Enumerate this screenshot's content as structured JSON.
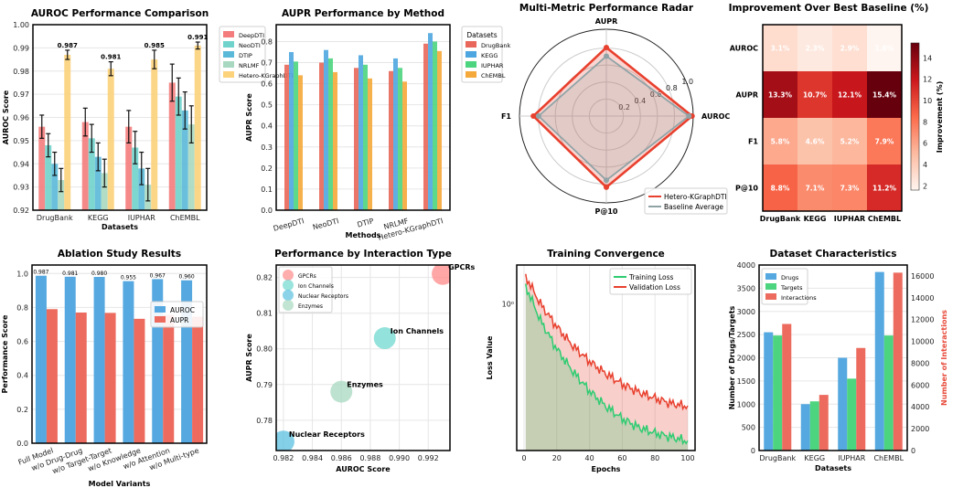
{
  "chart_data": [
    {
      "type": "bar",
      "title": "AUROC Performance Comparison",
      "xlabel": "Datasets",
      "ylabel": "AUROC Score",
      "ylim": [
        0.92,
        1.0
      ],
      "yticks": [
        "0.92",
        "0.93",
        "0.94",
        "0.95",
        "0.96",
        "0.97",
        "0.98",
        "0.99",
        "1.00"
      ],
      "categories": [
        "DrugBank",
        "KEGG",
        "IUPHAR",
        "ChEMBL"
      ],
      "series": [
        {
          "name": "DeepDTI",
          "color": "#f47c7c",
          "values": [
            0.956,
            0.958,
            0.956,
            0.975
          ],
          "err": [
            0.005,
            0.006,
            0.007,
            0.008
          ]
        },
        {
          "name": "NeoDTI",
          "color": "#6fd3cb",
          "values": [
            0.948,
            0.951,
            0.947,
            0.969
          ],
          "err": [
            0.005,
            0.006,
            0.007,
            0.008
          ]
        },
        {
          "name": "DTIP",
          "color": "#5ab8d8",
          "values": [
            0.94,
            0.943,
            0.938,
            0.963
          ],
          "err": [
            0.005,
            0.006,
            0.007,
            0.008
          ]
        },
        {
          "name": "NRLMF",
          "color": "#a8d8c0",
          "values": [
            0.933,
            0.936,
            0.931,
            0.957
          ],
          "err": [
            0.005,
            0.006,
            0.007,
            0.008
          ]
        },
        {
          "name": "Hetero-KGraphDTI",
          "color": "#fcd27a",
          "values": [
            0.987,
            0.981,
            0.985,
            0.991
          ],
          "err": [
            0.002,
            0.003,
            0.004,
            0.0015
          ]
        }
      ],
      "data_labels": [
        "0.987",
        "0.981",
        "0.985",
        "0.991"
      ],
      "legend": "right-outside"
    },
    {
      "type": "bar",
      "title": "AUPR Performance by Method",
      "xlabel": "Methods",
      "ylabel": "AUPR Score",
      "ylim": [
        0,
        0.88
      ],
      "yticks": [
        "0.0",
        "0.1",
        "0.2",
        "0.3",
        "0.4",
        "0.5",
        "0.6",
        "0.7",
        "0.8"
      ],
      "categories": [
        "DeepDTI",
        "NeoDTI",
        "DTIP",
        "NRLMF",
        "Hetero-KGraphDTI"
      ],
      "legend_title": "Datasets",
      "series": [
        {
          "name": "DrugBank",
          "color": "#e8675a",
          "values": [
            0.69,
            0.7,
            0.675,
            0.66,
            0.79
          ]
        },
        {
          "name": "KEGG",
          "color": "#4ea6e0",
          "values": [
            0.75,
            0.76,
            0.735,
            0.72,
            0.84
          ]
        },
        {
          "name": "IUPHAR",
          "color": "#4cd47e",
          "values": [
            0.705,
            0.72,
            0.69,
            0.675,
            0.8
          ]
        },
        {
          "name": "ChEMBL",
          "color": "#f5a93a",
          "values": [
            0.64,
            0.655,
            0.625,
            0.61,
            0.755
          ]
        }
      ]
    },
    {
      "type": "radar",
      "title": "Multi-Metric Performance Radar",
      "axes": [
        "AUROC",
        "AUPR",
        "F1",
        "P@10"
      ],
      "rticks": [
        "0.2",
        "0.4",
        "0.6",
        "0.8",
        "1.0"
      ],
      "series": [
        {
          "name": "Hetero-KGraphDTI",
          "color": "#e8402e",
          "values": [
            0.987,
            0.79,
            0.84,
            0.82
          ]
        },
        {
          "name": "Baseline Average",
          "color": "#8fa3a6",
          "values": [
            0.95,
            0.69,
            0.78,
            0.74
          ]
        }
      ]
    },
    {
      "type": "heatmap",
      "title": "Improvement Over Best Baseline (%)",
      "rows": [
        "AUROC",
        "AUPR",
        "F1",
        "P@10"
      ],
      "cols": [
        "DrugBank",
        "KEGG",
        "IUPHAR",
        "ChEMBL"
      ],
      "values": [
        [
          3.1,
          2.3,
          2.9,
          1.6
        ],
        [
          13.3,
          10.7,
          12.1,
          15.4
        ],
        [
          5.8,
          4.6,
          5.2,
          7.9
        ],
        [
          8.8,
          7.1,
          7.3,
          11.2
        ]
      ],
      "colorbar_label": "Improvement (%)",
      "colorbar_ticks": [
        "2",
        "4",
        "6",
        "8",
        "10",
        "12",
        "14"
      ],
      "vrange": [
        1.6,
        15.4
      ]
    },
    {
      "type": "bar",
      "title": "Ablation Study Results",
      "xlabel": "Model Variants",
      "ylabel": "Performance Score",
      "ylim": [
        0,
        1.05
      ],
      "yticks": [
        "0.0",
        "0.2",
        "0.4",
        "0.6",
        "0.8",
        "1.0"
      ],
      "categories": [
        "Full Model",
        "w/o Drug-Drug",
        "w/o Target-Target",
        "w/o Knowledge",
        "w/o Attention",
        "w/o Multi-type"
      ],
      "series": [
        {
          "name": "AUROC",
          "color": "#55a8e0",
          "values": [
            0.987,
            0.981,
            0.98,
            0.955,
            0.967,
            0.96
          ]
        },
        {
          "name": "AUPR",
          "color": "#ec6b5e",
          "values": [
            0.79,
            0.77,
            0.768,
            0.733,
            0.756,
            0.745
          ]
        }
      ],
      "data_labels": [
        "0.987",
        "0.981",
        "0.980",
        "0.955",
        "0.967",
        "0.960"
      ],
      "legend": "top-right"
    },
    {
      "type": "scatter",
      "title": "Performance by Interaction Type",
      "xlabel": "AUROC Score",
      "ylabel": "AUPR Score",
      "xlim": [
        0.9815,
        0.9935
      ],
      "ylim": [
        0.7715,
        0.8235
      ],
      "xticks": [
        "0.982",
        "0.984",
        "0.986",
        "0.988",
        "0.990",
        "0.992"
      ],
      "yticks": [
        "0.78",
        "0.79",
        "0.80",
        "0.81",
        "0.82"
      ],
      "points": [
        {
          "name": "GPCRs",
          "x": 0.993,
          "y": 0.821,
          "color": "#ff8a8a"
        },
        {
          "name": "Ion Channels",
          "x": 0.989,
          "y": 0.803,
          "color": "#6fd8d0"
        },
        {
          "name": "Nuclear Receptors",
          "x": 0.982,
          "y": 0.774,
          "color": "#5bc0e0"
        },
        {
          "name": "Enzymes",
          "x": 0.986,
          "y": 0.788,
          "color": "#a8d8c0"
        }
      ],
      "legend": "top-left"
    },
    {
      "type": "line",
      "title": "Training Convergence",
      "xlabel": "Epochs",
      "ylabel": "Loss Value",
      "yscale": "log",
      "xticks": [
        "0",
        "20",
        "40",
        "60",
        "80",
        "100"
      ],
      "ytick_label": "10⁰",
      "x": [
        0,
        10,
        20,
        30,
        40,
        50,
        60,
        70,
        80,
        90,
        100
      ],
      "series": [
        {
          "name": "Training Loss",
          "color": "#2ecc71",
          "values": [
            1.3,
            0.82,
            0.58,
            0.44,
            0.35,
            0.29,
            0.25,
            0.225,
            0.21,
            0.2,
            0.19
          ]
        },
        {
          "name": "Validation Loss",
          "color": "#e8402e",
          "values": [
            1.45,
            1.0,
            0.76,
            0.6,
            0.5,
            0.43,
            0.38,
            0.345,
            0.32,
            0.3,
            0.29
          ]
        }
      ],
      "legend": "top-right"
    },
    {
      "type": "bar",
      "title": "Dataset Characteristics",
      "xlabel": "Datasets",
      "ylabel": "Number of Drugs/Targets",
      "y2label": "Number of Interactions",
      "ylim": [
        0,
        4000
      ],
      "y2lim": [
        0,
        17000
      ],
      "yticks": [
        "0",
        "500",
        "1000",
        "1500",
        "2000",
        "2500",
        "3000",
        "3500",
        "4000"
      ],
      "y2ticks": [
        "0",
        "2000",
        "4000",
        "6000",
        "8000",
        "10000",
        "12000",
        "14000",
        "16000"
      ],
      "categories": [
        "DrugBank",
        "KEGG",
        "IUPHAR",
        "ChEMBL"
      ],
      "series": [
        {
          "name": "Drugs",
          "color": "#55a8e0",
          "values": [
            2550,
            1000,
            2000,
            3850
          ]
        },
        {
          "name": "Targets",
          "color": "#4cd47e",
          "values": [
            2480,
            1060,
            1550,
            2480
          ]
        },
        {
          "name": "Interactions",
          "color": "#ec6b5e",
          "values": [
            11600,
            5100,
            9400,
            16300
          ],
          "axis": "right"
        }
      ],
      "legend": "top-left"
    }
  ]
}
